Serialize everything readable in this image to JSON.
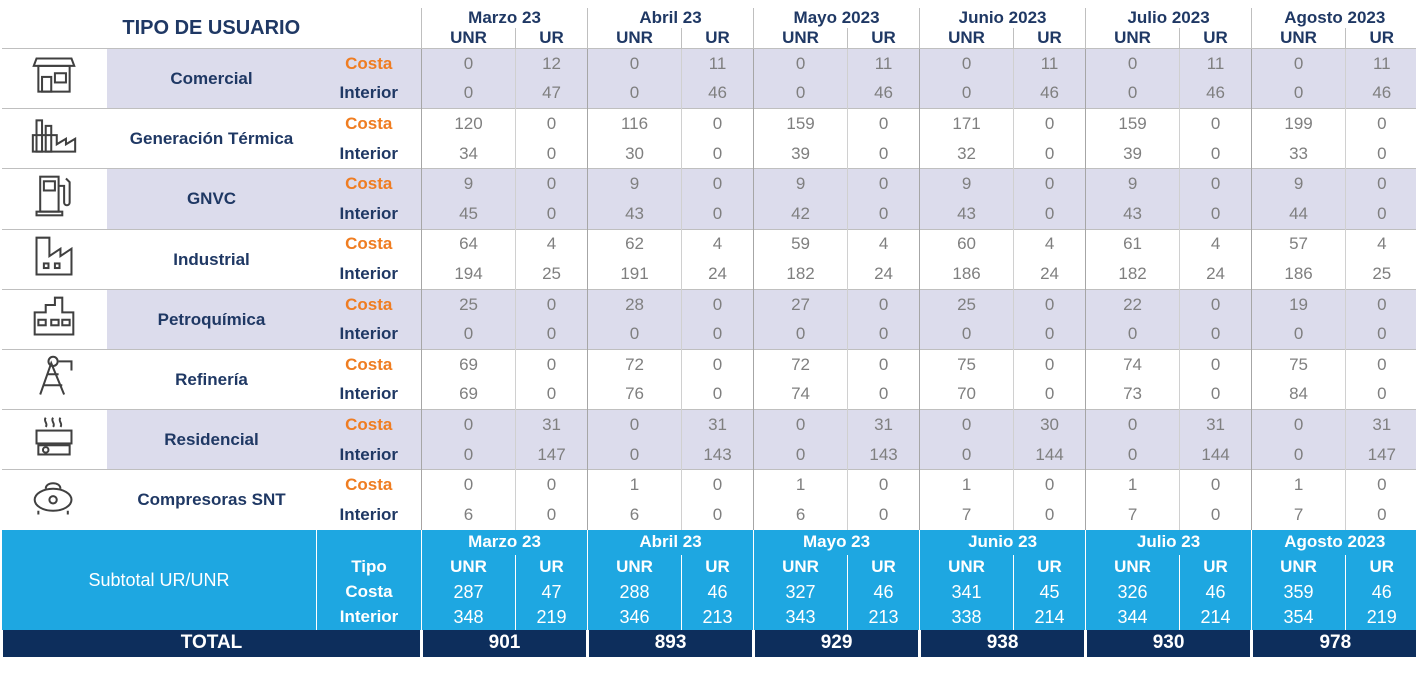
{
  "header": {
    "title": "TIPO DE USUARIO",
    "months": [
      "Marzo 23",
      "Abril 23",
      "Mayo 2023",
      "Junio 2023",
      "Julio 2023",
      "Agosto 2023"
    ],
    "columns": [
      "UNR",
      "UR"
    ]
  },
  "groups": [
    {
      "name": "Comercial",
      "rows": [
        {
          "type": "Costa",
          "values": [
            0,
            12,
            0,
            11,
            0,
            11,
            0,
            11,
            0,
            11,
            0,
            11
          ]
        },
        {
          "type": "Interior",
          "values": [
            0,
            47,
            0,
            46,
            0,
            46,
            0,
            46,
            0,
            46,
            0,
            46
          ]
        }
      ]
    },
    {
      "name": "Generación Térmica",
      "rows": [
        {
          "type": "Costa",
          "values": [
            120,
            0,
            116,
            0,
            159,
            0,
            171,
            0,
            159,
            0,
            199,
            0
          ]
        },
        {
          "type": "Interior",
          "values": [
            34,
            0,
            30,
            0,
            39,
            0,
            32,
            0,
            39,
            0,
            33,
            0
          ]
        }
      ]
    },
    {
      "name": "GNVC",
      "rows": [
        {
          "type": "Costa",
          "values": [
            9,
            0,
            9,
            0,
            9,
            0,
            9,
            0,
            9,
            0,
            9,
            0
          ]
        },
        {
          "type": "Interior",
          "values": [
            45,
            0,
            43,
            0,
            42,
            0,
            43,
            0,
            43,
            0,
            44,
            0
          ]
        }
      ]
    },
    {
      "name": "Industrial",
      "rows": [
        {
          "type": "Costa",
          "values": [
            64,
            4,
            62,
            4,
            59,
            4,
            60,
            4,
            61,
            4,
            57,
            4
          ]
        },
        {
          "type": "Interior",
          "values": [
            194,
            25,
            191,
            24,
            182,
            24,
            186,
            24,
            182,
            24,
            186,
            25
          ]
        }
      ]
    },
    {
      "name": "Petroquímica",
      "rows": [
        {
          "type": "Costa",
          "values": [
            25,
            0,
            28,
            0,
            27,
            0,
            25,
            0,
            22,
            0,
            19,
            0
          ]
        },
        {
          "type": "Interior",
          "values": [
            0,
            0,
            0,
            0,
            0,
            0,
            0,
            0,
            0,
            0,
            0,
            0
          ]
        }
      ]
    },
    {
      "name": "Refinería",
      "rows": [
        {
          "type": "Costa",
          "values": [
            69,
            0,
            72,
            0,
            72,
            0,
            75,
            0,
            74,
            0,
            75,
            0
          ]
        },
        {
          "type": "Interior",
          "values": [
            69,
            0,
            76,
            0,
            74,
            0,
            70,
            0,
            73,
            0,
            84,
            0
          ]
        }
      ]
    },
    {
      "name": "Residencial",
      "rows": [
        {
          "type": "Costa",
          "values": [
            0,
            31,
            0,
            31,
            0,
            31,
            0,
            30,
            0,
            31,
            0,
            31
          ]
        },
        {
          "type": "Interior",
          "values": [
            0,
            147,
            0,
            143,
            0,
            143,
            0,
            144,
            0,
            144,
            0,
            147
          ]
        }
      ]
    },
    {
      "name": "Compresoras SNT",
      "rows": [
        {
          "type": "Costa",
          "values": [
            0,
            0,
            1,
            0,
            1,
            0,
            1,
            0,
            1,
            0,
            1,
            0
          ]
        },
        {
          "type": "Interior",
          "values": [
            6,
            0,
            6,
            0,
            6,
            0,
            7,
            0,
            7,
            0,
            7,
            0
          ]
        }
      ]
    }
  ],
  "subtotal": {
    "label": "Subtotal UR/UNR",
    "months": [
      "Marzo 23",
      "Abril 23",
      "Mayo 23",
      "Junio 23",
      "Julio 23",
      "Agosto 2023"
    ],
    "type_label": "Tipo",
    "columns": [
      "UNR",
      "UR"
    ],
    "rows": [
      {
        "type": "Costa",
        "values": [
          287,
          47,
          288,
          46,
          327,
          46,
          341,
          45,
          326,
          46,
          359,
          46
        ]
      },
      {
        "type": "Interior",
        "values": [
          348,
          219,
          346,
          213,
          343,
          213,
          338,
          214,
          344,
          214,
          354,
          219
        ]
      }
    ]
  },
  "total": {
    "label": "TOTAL",
    "values": [
      901,
      893,
      929,
      938,
      930,
      978
    ]
  }
}
